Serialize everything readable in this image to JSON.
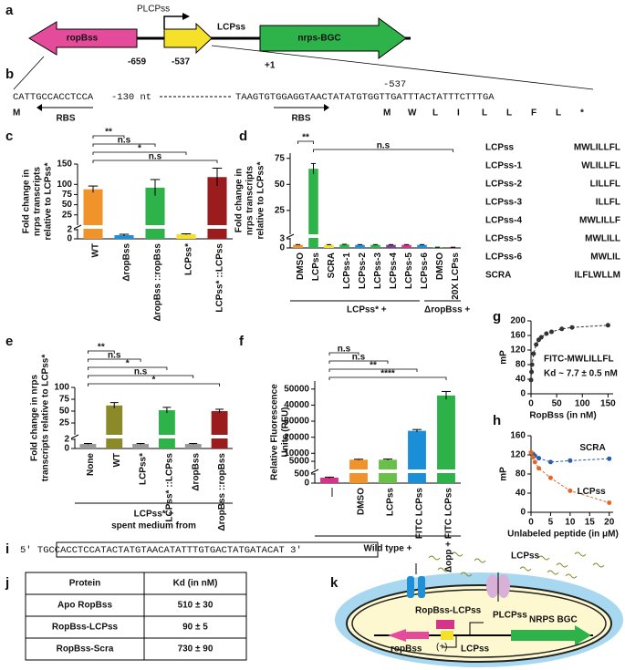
{
  "panel_labels": [
    "a",
    "b",
    "c",
    "d",
    "e",
    "f",
    "g",
    "h",
    "i",
    "j",
    "k"
  ],
  "diagram_a": {
    "rop": "ropBss",
    "promoter": "PLCPss",
    "lcp": "LCPss",
    "nrps": "nrps-BGC",
    "pos1": "-659",
    "pos2": "-537",
    "pos3": "+1"
  },
  "sequence_b": {
    "left": "CATTGCCACCTCCA",
    "gap": "-130 nt",
    "right": "TAAGTGTGGAGGTAACTATATGTGGTTGATTTACTATTTCTTTGA",
    "pos": "-537",
    "rbs": [
      "RBS",
      "RBS"
    ],
    "left_aa": "M",
    "aa": [
      "M",
      "W",
      "L",
      "I",
      "L",
      "L",
      "F",
      "L",
      "*"
    ]
  },
  "peptides": [
    {
      "name": "LCPss",
      "sequence": "MWLILLFL"
    },
    {
      "name": "LCPss-1",
      "sequence": "WLILLFL"
    },
    {
      "name": "LCPss-2",
      "sequence": "LILLFL"
    },
    {
      "name": "LCPss-3",
      "sequence": "ILLFL"
    },
    {
      "name": "LCPss-4",
      "sequence": "MWLILLF"
    },
    {
      "name": "LCPss-5",
      "sequence": "MWLILL"
    },
    {
      "name": "LCPss-6",
      "sequence": "MWLIL"
    },
    {
      "name": "SCRA",
      "sequence": "ILFLWLLM"
    }
  ],
  "sequence_i": "5' TGCCACCTCCATACTATGTAACATATTTGTGACTATGATACAT 3'",
  "table_j": {
    "header": [
      "Protein",
      "Kd (in nM)"
    ],
    "rows": [
      [
        "Apo RopBss",
        "510 ± 30"
      ],
      [
        "RopBss-LCPss",
        "90 ± 5"
      ],
      [
        "RopBss-Scra",
        "730 ± 90"
      ]
    ]
  },
  "diagram_k": {
    "outside": "LCPss",
    "complex": "RopBss-LCPss",
    "promoter": "PLCPss",
    "nrps": "NRPS BGC",
    "rop": "ropBss",
    "lcp": "LCPss",
    "plus": "(+)"
  },
  "chart_data": [
    {
      "type": "bar",
      "ylabel": [
        "Fold change in",
        "nrps transcripts",
        "relative to LCPss*"
      ],
      "categories": [
        "WT",
        "ΔropBss",
        "ΔropBss ::ropBss",
        "LCPss*",
        "LCPss* ::LCPss"
      ],
      "values": [
        88,
        0.8,
        92,
        1,
        118
      ],
      "errors": [
        8,
        0.2,
        20,
        0.1,
        22
      ],
      "colors": [
        "#f0932b",
        "#1f8fd6",
        "#2eb34a",
        "#f5e12a",
        "#9b1c1c"
      ],
      "ylim": [
        0,
        150
      ],
      "yticks": [
        0,
        2,
        25,
        50,
        75,
        100,
        150
      ],
      "broken_axis": true,
      "significance": [
        "**",
        "n.s",
        "*",
        "n.s"
      ]
    },
    {
      "type": "bar",
      "ylabel": [
        "Fold change in",
        "nrps transcripts",
        "relative to LCPss*"
      ],
      "categories": [
        "DMSO",
        "LCPss",
        "SCRA",
        "LCPss-1",
        "LCPss-2",
        "LCPss-3",
        "LCPss-4",
        "LCPss-5",
        "LCPss-6",
        "DMSO",
        "20X LCPss"
      ],
      "values": [
        1,
        65,
        1,
        1.1,
        1,
        1,
        1,
        1,
        1,
        0.2,
        0.2
      ],
      "errors": [
        0.1,
        5,
        0.1,
        0.1,
        0.1,
        0.1,
        0.1,
        0.1,
        0.1,
        0.05,
        0.05
      ],
      "colors": [
        "#f0932b",
        "#2eb34a",
        "#f5e12a",
        "#2eb34a",
        "#1f8fd6",
        "#2eb34a",
        "#7b3f98",
        "#d6338a",
        "#1f8fd6",
        "#2eb34a",
        "#9b1c1c"
      ],
      "ylim": [
        0,
        80
      ],
      "yticks": [
        0,
        3,
        25,
        50,
        75
      ],
      "broken_axis": true,
      "significance": [
        "**",
        "n.s"
      ],
      "groups": [
        "LCPss* +",
        "ΔropBss +"
      ]
    },
    {
      "type": "bar",
      "ylabel": [
        "Fold change in nrps",
        "transcripts relative to LCPss*"
      ],
      "categories": [
        "None",
        "WT",
        "LCPss*",
        "LCPss* ::LCPss",
        "ΔropBss",
        "ΔropBss ::ropBss"
      ],
      "values": [
        1,
        62,
        1,
        52,
        1,
        50
      ],
      "errors": [
        0.1,
        6,
        0.1,
        6,
        0.1,
        4
      ],
      "colors": [
        "#999999",
        "#8a8a2a",
        "#999999",
        "#2eb34a",
        "#999999",
        "#9b1c1c"
      ],
      "ylim": [
        0,
        100
      ],
      "yticks": [
        0,
        2,
        25,
        50,
        75,
        100
      ],
      "broken_axis": true,
      "significance": [
        "**",
        "n.s",
        "*",
        "n.s",
        "*"
      ],
      "xlabel": [
        "LCPss* +",
        "spent medium from"
      ]
    },
    {
      "type": "bar",
      "ylabel": [
        "Relative Fluorescence",
        "Units (RFU)"
      ],
      "categories": [
        "—",
        "DMSO",
        "LCPss",
        "FITC LCPss",
        "Δopp + FITC LCPss"
      ],
      "values": [
        300,
        6000,
        6000,
        24000,
        46000
      ],
      "errors": [
        30,
        300,
        400,
        800,
        2500
      ],
      "colors": [
        "#d6338a",
        "#f0932b",
        "#6abf4b",
        "#1a8fd8",
        "#2db24a"
      ],
      "ylim": [
        0,
        55000
      ],
      "yticks": [
        0,
        500,
        5000,
        10000,
        20000,
        30000,
        40000,
        50000
      ],
      "broken_axis": true,
      "significance": [
        "n.s",
        "n.s",
        "**",
        "****"
      ],
      "xlabel": [
        "Wild type +"
      ]
    },
    {
      "type": "line",
      "ylabel": [
        "mP"
      ],
      "xlabel": [
        "RopBss (in nM)"
      ],
      "x": [
        0,
        1,
        2,
        5,
        10,
        15,
        20,
        30,
        40,
        60,
        80,
        150
      ],
      "series": [
        {
          "color": "#333333",
          "values": [
            38,
            60,
            80,
            110,
            135,
            148,
            155,
            165,
            170,
            178,
            182,
            188
          ]
        }
      ],
      "xlim": [
        0,
        160
      ],
      "xticks": [
        0,
        50,
        100,
        150
      ],
      "ylim": [
        0,
        200
      ],
      "yticks": [
        0,
        40,
        80,
        120,
        160,
        200
      ],
      "annotations": [
        "FITC-MWLILLFL",
        "Kd ~ 7.7 ± 0.5 nM"
      ]
    },
    {
      "type": "line",
      "ylabel": [
        "mP"
      ],
      "xlabel": [
        "Unlabeled peptide (in μM)"
      ],
      "x": [
        0,
        0.5,
        1,
        2,
        5,
        10,
        20
      ],
      "series": [
        {
          "name": "SCRA",
          "color": "#2a5ca8",
          "values": [
            125,
            122,
            118,
            113,
            105,
            108,
            112
          ]
        },
        {
          "name": "LCPss",
          "color": "#e0692a",
          "values": [
            125,
            115,
            105,
            92,
            72,
            45,
            20
          ]
        }
      ],
      "xlim": [
        0,
        21
      ],
      "xticks": [
        0,
        5,
        10,
        15,
        20
      ],
      "ylim": [
        0,
        160
      ],
      "yticks": [
        0,
        40,
        80,
        120,
        160
      ]
    }
  ]
}
